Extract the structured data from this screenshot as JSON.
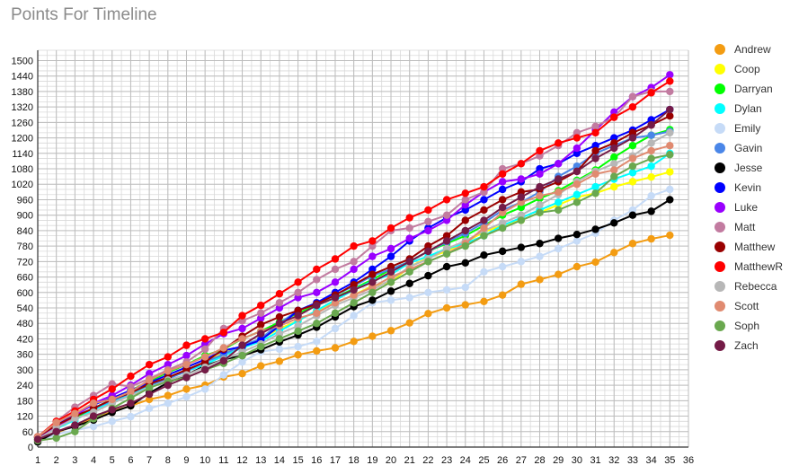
{
  "chart_data": {
    "type": "line",
    "title": "Points For Timeline",
    "xlim": [
      1,
      36
    ],
    "ylim": [
      0,
      1540
    ],
    "x_ticks": [
      1,
      2,
      3,
      4,
      5,
      6,
      7,
      8,
      9,
      10,
      11,
      12,
      13,
      14,
      15,
      16,
      17,
      18,
      19,
      20,
      21,
      22,
      23,
      24,
      25,
      26,
      27,
      28,
      29,
      30,
      31,
      32,
      33,
      34,
      35,
      36
    ],
    "y_ticks": [
      0,
      60,
      120,
      180,
      240,
      300,
      360,
      420,
      480,
      540,
      600,
      660,
      720,
      780,
      840,
      900,
      960,
      1020,
      1080,
      1140,
      1200,
      1260,
      1320,
      1380,
      1440,
      1500
    ],
    "grid": true,
    "legend_position": "right",
    "x": [
      1,
      2,
      3,
      4,
      5,
      6,
      7,
      8,
      9,
      10,
      11,
      12,
      13,
      14,
      15,
      16,
      17,
      18,
      19,
      20,
      21,
      22,
      23,
      24,
      25,
      26,
      27,
      28,
      29,
      30,
      31,
      32,
      33,
      34,
      35
    ],
    "series": [
      {
        "name": "Andrew",
        "color": "#f39c12",
        "values": [
          28,
          55,
          85,
          110,
          138,
          160,
          185,
          200,
          225,
          240,
          272,
          285,
          315,
          333,
          358,
          373,
          385,
          410,
          430,
          452,
          482,
          518,
          540,
          552,
          565,
          590,
          632,
          650,
          670,
          700,
          718,
          755,
          790,
          808,
          822
        ]
      },
      {
        "name": "Coop",
        "color": "#ffff00",
        "values": [
          35,
          80,
          115,
          150,
          175,
          205,
          230,
          270,
          300,
          330,
          365,
          390,
          420,
          460,
          490,
          530,
          560,
          590,
          625,
          640,
          700,
          735,
          760,
          795,
          835,
          860,
          880,
          910,
          940,
          970,
          985,
          1010,
          1030,
          1048,
          1068
        ]
      },
      {
        "name": "Darryan",
        "color": "#00ff00",
        "values": [
          35,
          75,
          110,
          150,
          185,
          220,
          255,
          290,
          320,
          355,
          380,
          420,
          450,
          485,
          520,
          550,
          580,
          615,
          650,
          690,
          720,
          760,
          790,
          820,
          860,
          900,
          930,
          965,
          995,
          1035,
          1075,
          1125,
          1170,
          1210,
          1232
        ]
      },
      {
        "name": "Dylan",
        "color": "#00ffff",
        "values": [
          38,
          72,
          105,
          145,
          175,
          205,
          230,
          265,
          295,
          320,
          355,
          385,
          410,
          450,
          490,
          530,
          570,
          610,
          645,
          670,
          715,
          740,
          770,
          790,
          820,
          860,
          890,
          920,
          950,
          980,
          1010,
          1040,
          1065,
          1090,
          1140
        ]
      },
      {
        "name": "Emily",
        "color": "#c6dbf7",
        "values": [
          20,
          50,
          65,
          80,
          100,
          118,
          150,
          170,
          195,
          225,
          280,
          330,
          370,
          380,
          390,
          410,
          460,
          510,
          560,
          570,
          580,
          600,
          610,
          620,
          680,
          700,
          720,
          740,
          770,
          800,
          830,
          880,
          920,
          975,
          1000
        ]
      },
      {
        "name": "Gavin",
        "color": "#4a86e8",
        "values": [
          40,
          85,
          120,
          150,
          180,
          210,
          240,
          265,
          295,
          330,
          360,
          395,
          420,
          480,
          530,
          560,
          590,
          625,
          665,
          690,
          720,
          760,
          795,
          830,
          870,
          920,
          950,
          990,
          1050,
          1090,
          1140,
          1170,
          1200,
          1210,
          1225
        ]
      },
      {
        "name": "Jesse",
        "color": "#000000",
        "values": [
          20,
          60,
          80,
          105,
          135,
          160,
          210,
          250,
          280,
          315,
          340,
          355,
          378,
          408,
          435,
          465,
          505,
          545,
          570,
          605,
          635,
          665,
          700,
          715,
          745,
          760,
          775,
          790,
          810,
          825,
          845,
          870,
          900,
          915,
          960
        ]
      },
      {
        "name": "Kevin",
        "color": "#0000ff",
        "values": [
          38,
          85,
          125,
          165,
          190,
          220,
          250,
          280,
          310,
          340,
          375,
          390,
          415,
          470,
          530,
          560,
          600,
          640,
          690,
          740,
          800,
          850,
          890,
          920,
          960,
          1000,
          1030,
          1080,
          1100,
          1140,
          1170,
          1200,
          1230,
          1270,
          1310
        ]
      },
      {
        "name": "Luke",
        "color": "#9900ff",
        "values": [
          30,
          80,
          120,
          170,
          200,
          240,
          285,
          320,
          355,
          400,
          440,
          460,
          500,
          540,
          580,
          600,
          640,
          690,
          740,
          770,
          810,
          840,
          880,
          940,
          990,
          1030,
          1040,
          1060,
          1100,
          1160,
          1230,
          1300,
          1360,
          1395,
          1445
        ]
      },
      {
        "name": "Matt",
        "color": "#c27ba0",
        "values": [
          38,
          100,
          155,
          200,
          245,
          235,
          265,
          300,
          330,
          380,
          460,
          490,
          520,
          560,
          600,
          650,
          690,
          720,
          780,
          840,
          850,
          875,
          900,
          960,
          990,
          1080,
          1100,
          1130,
          1170,
          1220,
          1245,
          1280,
          1360,
          1380,
          1380
        ]
      },
      {
        "name": "Matthew",
        "color": "#990000",
        "values": [
          40,
          85,
          120,
          150,
          185,
          210,
          245,
          270,
          300,
          330,
          380,
          430,
          475,
          505,
          530,
          555,
          590,
          630,
          670,
          700,
          730,
          780,
          820,
          880,
          920,
          960,
          990,
          1000,
          1030,
          1070,
          1150,
          1180,
          1220,
          1250,
          1285
        ]
      },
      {
        "name": "MatthewR",
        "color": "#ff0000",
        "values": [
          40,
          100,
          140,
          185,
          225,
          275,
          320,
          350,
          395,
          420,
          445,
          510,
          550,
          595,
          640,
          690,
          730,
          780,
          800,
          850,
          890,
          920,
          960,
          985,
          1010,
          1060,
          1100,
          1150,
          1180,
          1200,
          1220,
          1280,
          1320,
          1375,
          1420
        ]
      },
      {
        "name": "Rebecca",
        "color": "#b7b7b7",
        "values": [
          30,
          75,
          110,
          135,
          170,
          200,
          230,
          260,
          280,
          310,
          340,
          370,
          400,
          440,
          470,
          510,
          550,
          580,
          610,
          650,
          700,
          730,
          770,
          800,
          840,
          870,
          900,
          940,
          980,
          1030,
          1070,
          1100,
          1130,
          1180,
          1220
        ]
      },
      {
        "name": "Scott",
        "color": "#e08a70",
        "values": [
          40,
          95,
          130,
          170,
          185,
          215,
          260,
          295,
          320,
          350,
          385,
          420,
          450,
          470,
          500,
          520,
          560,
          590,
          620,
          660,
          690,
          720,
          750,
          790,
          850,
          910,
          950,
          975,
          990,
          1020,
          1060,
          1075,
          1120,
          1150,
          1170
        ]
      },
      {
        "name": "Soph",
        "color": "#6aa84f",
        "values": [
          25,
          35,
          60,
          110,
          150,
          190,
          230,
          255,
          270,
          300,
          325,
          355,
          390,
          420,
          450,
          480,
          520,
          560,
          600,
          640,
          680,
          720,
          750,
          780,
          820,
          850,
          880,
          910,
          920,
          950,
          985,
          1050,
          1090,
          1120,
          1135
        ]
      },
      {
        "name": "Zach",
        "color": "#741b47",
        "values": [
          30,
          60,
          85,
          120,
          145,
          170,
          205,
          240,
          270,
          300,
          335,
          395,
          440,
          480,
          510,
          550,
          580,
          610,
          640,
          680,
          720,
          760,
          800,
          840,
          880,
          930,
          970,
          1010,
          1040,
          1070,
          1120,
          1160,
          1200,
          1250,
          1310
        ]
      }
    ]
  }
}
